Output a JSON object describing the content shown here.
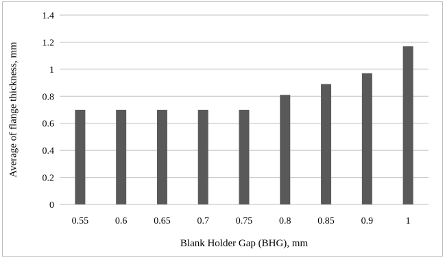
{
  "chart_data": {
    "type": "bar",
    "title": "",
    "xlabel": "Blank Holder Gap (BHG), mm",
    "ylabel": "Average of flange thickness, mm",
    "categories": [
      "0.55",
      "0.6",
      "0.65",
      "0.7",
      "0.75",
      "0.8",
      "0.85",
      "0.9",
      "1"
    ],
    "values": [
      0.7,
      0.7,
      0.7,
      0.7,
      0.7,
      0.81,
      0.89,
      0.97,
      1.17
    ],
    "ylim": [
      0,
      1.4
    ],
    "yticks": [
      "0",
      "0.2",
      "0.4",
      "0.6",
      "0.8",
      "1",
      "1.2",
      "1.4"
    ],
    "grid": true,
    "legend": "none",
    "bar_color": "#595959",
    "grid_color": "#bfbfbf"
  }
}
